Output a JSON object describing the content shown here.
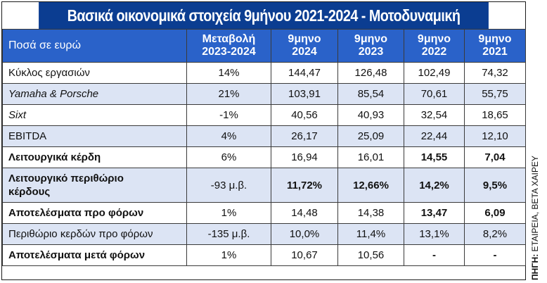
{
  "title": "Βασικά οικονομικά στοιχεία 9μήνου 2021-2024 - Μοτοδυναμική",
  "header": {
    "label": "Ποσά σε ευρώ",
    "columns": [
      {
        "line1": "Μεταβολή",
        "line2": "2023-2024"
      },
      {
        "line1": "9μηνο",
        "line2": "2024"
      },
      {
        "line1": "9μηνο",
        "line2": "2023"
      },
      {
        "line1": "9μηνο",
        "line2": "2022"
      },
      {
        "line1": "9μηνο",
        "line2": "2021"
      }
    ]
  },
  "rows": [
    {
      "label": "Κύκλος εργασιών",
      "cells": [
        "14%",
        "144,47",
        "126,48",
        "102,49",
        "74,32"
      ]
    },
    {
      "label": "Yamaha & Porsche",
      "cells": [
        "21%",
        "103,91",
        "85,54",
        "70,61",
        "55,75"
      ]
    },
    {
      "label": "Sixt",
      "cells": [
        "-1%",
        "40,56",
        "40,93",
        "32,54",
        "18,65"
      ]
    },
    {
      "label": "EBITDA",
      "cells": [
        "4%",
        "26,17",
        "25,09",
        "22,44",
        "12,10"
      ]
    },
    {
      "label": "Λειτουργικά κέρδη",
      "cells": [
        "6%",
        "16,94",
        "16,01",
        "14,55",
        "7,04"
      ]
    },
    {
      "label_line1": "Λειτουργικό περιθώριο",
      "label_line2": "κέρδους",
      "cells": [
        "-93 μ.β.",
        "11,72%",
        "12,66%",
        "14,2%",
        "9,5%"
      ]
    },
    {
      "label": "Αποτελέσματα προ φόρων",
      "cells": [
        "1%",
        "14,48",
        "14,38",
        "13,47",
        "6,09"
      ]
    },
    {
      "label": "Περιθώριο κερδών προ φόρων",
      "cells": [
        "-135 μ.β.",
        "10,0%",
        "11,4%",
        "13,1%",
        "8,2%"
      ]
    },
    {
      "label": "Αποτελέσματα μετά φόρων",
      "cells": [
        "1%",
        "10,67",
        "10,56",
        "-",
        "-"
      ]
    }
  ],
  "source": {
    "key": "ΠΗΓΗ:",
    "text": "ΕΤΑΙΡΕΙΑ, ΒΕΤΑ ΧΑΙΡΕΥ"
  },
  "colors": {
    "title_bg": "#0b3d91",
    "header_bg": "#2a62c9",
    "alt_row_bg": "#dce4f4"
  }
}
